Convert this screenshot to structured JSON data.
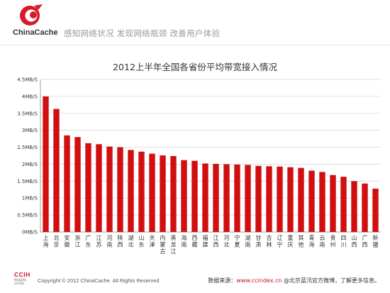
{
  "header": {
    "brand": "ChinaCache",
    "tagline": "感知网络状况  发现网络瓶颈  改善用户体验"
  },
  "chart_data": {
    "type": "bar",
    "title": "2012上半年全国各省份平均带宽接入情况",
    "xlabel": "",
    "ylabel": "",
    "ylim": [
      0,
      4.5
    ],
    "yticks": [
      "0MB/S",
      "0.5MB/S",
      "1MB/S",
      "1.5MB/S",
      "2MB/S",
      "2.5MB/S",
      "3MB/S",
      "3.5MB/S",
      "4MB/S",
      "4.5MB/S"
    ],
    "grid": true,
    "categories": [
      "上海",
      "北京",
      "安徽",
      "浙江",
      "广东",
      "江苏",
      "河南",
      "陕西",
      "湖北",
      "山东",
      "天津",
      "内蒙古",
      "黑龙江",
      "海南",
      "西藏",
      "福建",
      "江西",
      "河北",
      "宁夏",
      "湖南",
      "甘肃",
      "吉林",
      "辽宁",
      "重庆",
      "其他",
      "青海",
      "云南",
      "贵州",
      "四川",
      "山西",
      "广西",
      "新疆"
    ],
    "values": [
      4.0,
      3.63,
      2.85,
      2.8,
      2.62,
      2.59,
      2.52,
      2.5,
      2.42,
      2.37,
      2.31,
      2.26,
      2.24,
      2.12,
      2.1,
      2.02,
      2.01,
      2.0,
      1.99,
      1.98,
      1.95,
      1.94,
      1.93,
      1.91,
      1.89,
      1.81,
      1.77,
      1.68,
      1.63,
      1.5,
      1.43,
      1.28
    ],
    "color": "#d01010"
  },
  "footer": {
    "ccih": "CCIH",
    "nasdaq": "NASDAQ",
    "listed": "LISTED",
    "copyright": "Copyright © 2012 ChinaCache. All Rights Reserved",
    "source_prefix": "数据来源：",
    "source_url": "www.ccindex.cn",
    "source_suffix": " @北京蓝汛官方微博，了解更多信息。"
  }
}
